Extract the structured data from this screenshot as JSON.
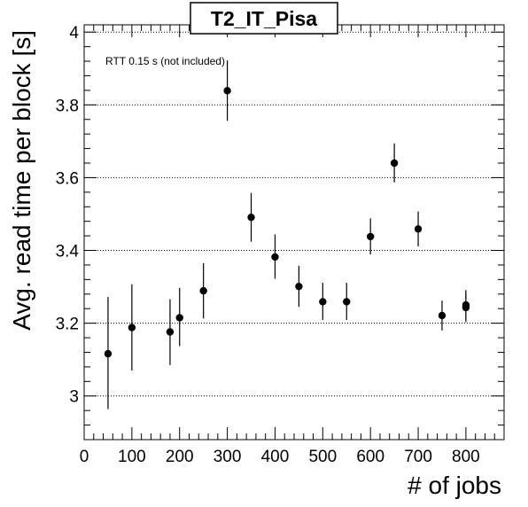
{
  "chart_data": {
    "type": "scatter",
    "title": "T2_IT_Pisa",
    "xlabel": "# of jobs",
    "ylabel": "Avg. read time per block [s]",
    "annotation": "RTT 0.15 s (not included)",
    "xlim": [
      0,
      880
    ],
    "ylim": [
      2.88,
      4.02
    ],
    "x_major_ticks": [
      0,
      100,
      200,
      300,
      400,
      500,
      600,
      700,
      800
    ],
    "y_major_ticks": [
      3,
      3.2,
      3.4,
      3.6,
      3.8,
      4
    ],
    "x_tick_labels": [
      "0",
      "100",
      "200",
      "300",
      "400",
      "500",
      "600",
      "700",
      "800"
    ],
    "y_tick_labels": [
      "3",
      "3.2",
      "3.4",
      "3.6",
      "3.8",
      "4"
    ],
    "y_grid": true,
    "x_grid": false,
    "marker_color": "#000000",
    "points": [
      {
        "x": 50,
        "y": 3.116,
        "ylow": 2.964,
        "yhigh": 3.272
      },
      {
        "x": 100,
        "y": 3.188,
        "ylow": 3.07,
        "yhigh": 3.307
      },
      {
        "x": 180,
        "y": 3.176,
        "ylow": 3.085,
        "yhigh": 3.266
      },
      {
        "x": 200,
        "y": 3.215,
        "ylow": 3.137,
        "yhigh": 3.297
      },
      {
        "x": 250,
        "y": 3.289,
        "ylow": 3.213,
        "yhigh": 3.365
      },
      {
        "x": 300,
        "y": 3.839,
        "ylow": 3.756,
        "yhigh": 3.922
      },
      {
        "x": 350,
        "y": 3.491,
        "ylow": 3.424,
        "yhigh": 3.558
      },
      {
        "x": 400,
        "y": 3.382,
        "ylow": 3.322,
        "yhigh": 3.444
      },
      {
        "x": 450,
        "y": 3.301,
        "ylow": 3.245,
        "yhigh": 3.358
      },
      {
        "x": 500,
        "y": 3.259,
        "ylow": 3.209,
        "yhigh": 3.311
      },
      {
        "x": 550,
        "y": 3.259,
        "ylow": 3.209,
        "yhigh": 3.311
      },
      {
        "x": 600,
        "y": 3.438,
        "ylow": 3.389,
        "yhigh": 3.488
      },
      {
        "x": 650,
        "y": 3.64,
        "ylow": 3.587,
        "yhigh": 3.694
      },
      {
        "x": 700,
        "y": 3.459,
        "ylow": 3.411,
        "yhigh": 3.507
      },
      {
        "x": 750,
        "y": 3.221,
        "ylow": 3.18,
        "yhigh": 3.262
      },
      {
        "x": 800,
        "y": 3.243,
        "ylow": 3.203,
        "yhigh": 3.286
      },
      {
        "x": 800,
        "y": 3.25,
        "ylow": 3.21,
        "yhigh": 3.291
      }
    ]
  }
}
